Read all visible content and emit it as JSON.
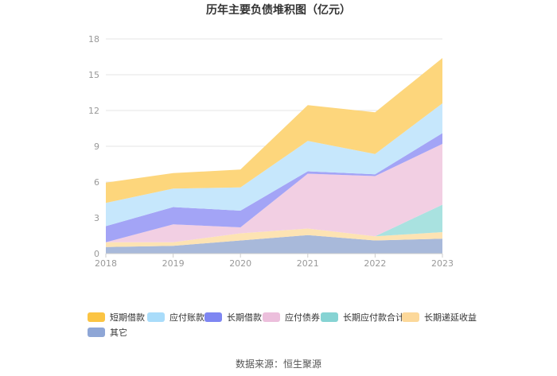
{
  "chart_data": {
    "type": "area",
    "stacked": true,
    "title": "历年主要负债堆积图（亿元）",
    "categories": [
      "2018",
      "2019",
      "2020",
      "2021",
      "2022",
      "2023"
    ],
    "ylim": [
      0,
      18
    ],
    "yticks": [
      "0",
      "3",
      "6",
      "9",
      "12",
      "15",
      "18"
    ],
    "grid": true,
    "legend_position": "bottom",
    "series": [
      {
        "name": "其它",
        "color": "#a8b9da",
        "legend_color": "#8ea6d6",
        "values": [
          0.55,
          0.65,
          1.1,
          1.55,
          1.1,
          1.25
        ]
      },
      {
        "name": "长期递延收益",
        "color": "#fde3b3",
        "legend_color": "#fcd89a",
        "values": [
          0.4,
          0.3,
          0.6,
          0.55,
          0.35,
          0.55
        ]
      },
      {
        "name": "长期应付款合计",
        "color": "#a9e2e0",
        "legend_color": "#86d3d3",
        "values": [
          0.0,
          0.0,
          0.0,
          0.0,
          0.0,
          2.3
        ]
      },
      {
        "name": "应付债券",
        "color": "#f2cfe3",
        "legend_color": "#ecbfdc",
        "values": [
          0.0,
          1.5,
          0.5,
          4.6,
          5.05,
          5.1
        ]
      },
      {
        "name": "长期借款",
        "color": "#a3a4f6",
        "legend_color": "#7e86f2",
        "values": [
          1.35,
          1.45,
          1.4,
          0.2,
          0.15,
          0.9
        ]
      },
      {
        "name": "应付账款",
        "color": "#c6e7fc",
        "legend_color": "#a9dcfa",
        "values": [
          1.95,
          1.55,
          1.95,
          2.55,
          1.7,
          2.5
        ]
      },
      {
        "name": "短期借款",
        "color": "#fdd67c",
        "legend_color": "#fbc443",
        "values": [
          1.7,
          1.3,
          1.5,
          3.0,
          3.5,
          3.8
        ]
      }
    ]
  },
  "source": "数据来源：恒生聚源"
}
